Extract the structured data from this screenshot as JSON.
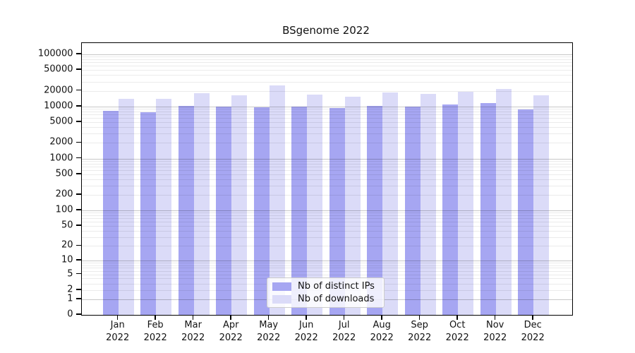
{
  "chart_data": {
    "type": "bar",
    "title": "BSgenome 2022",
    "categories": [
      "Jan 2022",
      "Feb 2022",
      "Mar 2022",
      "Apr 2022",
      "May 2022",
      "Jun 2022",
      "Jul 2022",
      "Aug 2022",
      "Sep 2022",
      "Oct 2022",
      "Nov 2022",
      "Dec 2022"
    ],
    "x_tick_labels": [
      {
        "month": "Jan",
        "year": "2022"
      },
      {
        "month": "Feb",
        "year": "2022"
      },
      {
        "month": "Mar",
        "year": "2022"
      },
      {
        "month": "Apr",
        "year": "2022"
      },
      {
        "month": "May",
        "year": "2022"
      },
      {
        "month": "Jun",
        "year": "2022"
      },
      {
        "month": "Jul",
        "year": "2022"
      },
      {
        "month": "Aug",
        "year": "2022"
      },
      {
        "month": "Sep",
        "year": "2022"
      },
      {
        "month": "Oct",
        "year": "2022"
      },
      {
        "month": "Nov",
        "year": "2022"
      },
      {
        "month": "Dec",
        "year": "2022"
      }
    ],
    "series": [
      {
        "name": "Nb of distinct IPs",
        "color": "#a6a6f2",
        "values": [
          8200,
          7800,
          10400,
          9800,
          9600,
          9900,
          9400,
          10400,
          9900,
          10800,
          11800,
          8800
        ]
      },
      {
        "name": "Nb of downloads",
        "color": "#dbdbf8",
        "values": [
          14000,
          14200,
          17900,
          16600,
          25000,
          16700,
          15400,
          18300,
          17600,
          19300,
          21800,
          16400
        ]
      }
    ],
    "yscale": "log10(value+1)",
    "ylim": [
      0,
      160000
    ],
    "y_tick_values": [
      100000,
      50000,
      20000,
      10000,
      5000,
      2000,
      1000,
      500,
      200,
      100,
      50,
      20,
      10,
      5,
      2,
      1,
      0
    ],
    "grid": "horizontal log minor+major lines, drawn over bars",
    "legend_position": "inside-bottom-center"
  },
  "style": {
    "background": "#ffffff",
    "axis_color": "#000000",
    "grid_major_color": "rgba(0,0,0,0.22)",
    "grid_minor_color": "rgba(0,0,0,0.08)",
    "text_color": "#111111"
  }
}
